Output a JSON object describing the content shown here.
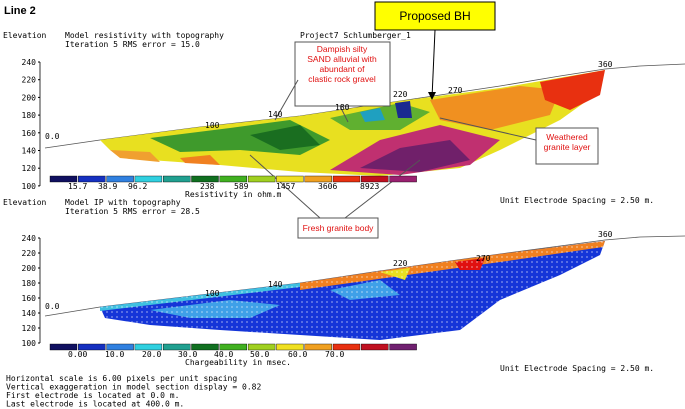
{
  "title": "Line 2",
  "banner": "Proposed BH",
  "project": "Project7 Schlumberger_1",
  "annotations": [
    {
      "lines": [
        "Dampish silty",
        "SAND alluvial with",
        "abundant of",
        "clastic rock gravel"
      ]
    },
    {
      "lines": [
        "Weathered",
        "granite layer"
      ]
    },
    {
      "lines": [
        "Fresh granite body"
      ]
    }
  ],
  "panels": [
    {
      "axis_label": "Elevation",
      "lines": [
        "Model resistivity with topography",
        "Iteration 5 RMS error = 15.0"
      ],
      "yticks": [
        "240",
        "220",
        "200",
        "180",
        "160",
        "140",
        "120",
        "100"
      ],
      "distances": [
        "0.0",
        "100",
        "140",
        "180",
        "220",
        "270",
        "360"
      ],
      "scale_labels": [
        "15.7",
        "38.9",
        "96.2",
        "238",
        "589",
        "1457",
        "3606",
        "8923"
      ],
      "scale_title": "Resistivity in ohm.m",
      "spacing": "Unit Electrode Spacing = 2.50 m."
    },
    {
      "axis_label": "Elevation",
      "lines": [
        "Model IP with topography",
        "Iteration 5 RMS error = 28.5"
      ],
      "yticks": [
        "240",
        "220",
        "200",
        "180",
        "160",
        "140",
        "120",
        "100"
      ],
      "distances": [
        "0.0",
        "100",
        "140",
        "220",
        "270",
        "360"
      ],
      "scale_labels": [
        "0.00",
        "10.0",
        "20.0",
        "30.0",
        "40.0",
        "50.0",
        "60.0",
        "70.0"
      ],
      "scale_title": "Chargeability in msec.",
      "spacing": "Unit Electrode Spacing = 2.50 m."
    }
  ],
  "footer": [
    "Horizontal scale is 6.00 pixels per unit spacing",
    "Vertical exaggeration in model section display = 0.82",
    "First electrode is located at 0.0 m.",
    "Last electrode is located at 400.0 m."
  ]
}
